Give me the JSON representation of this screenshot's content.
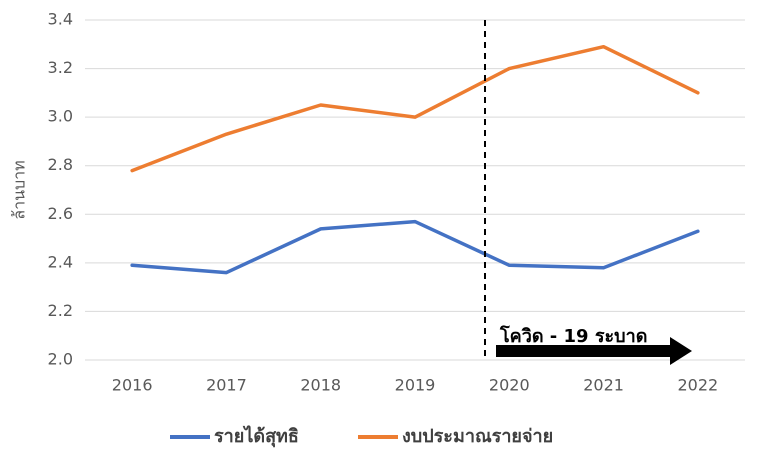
{
  "chart_data": {
    "type": "line",
    "y_label": "ล้านบาท",
    "annotation": "โควิด - 19 ระบาด",
    "categories": [
      "2016",
      "2017",
      "2018",
      "2019",
      "2020",
      "2021",
      "2022"
    ],
    "series": [
      {
        "name": "รายได้สุทธิ",
        "color": "#4472c4",
        "values": [
          2.39,
          2.36,
          2.54,
          2.57,
          2.39,
          2.38,
          2.53
        ]
      },
      {
        "name": "งบประมาณรายจ่าย",
        "color": "#ed7d31",
        "values": [
          2.78,
          2.93,
          3.05,
          3.0,
          3.2,
          3.29,
          3.1
        ]
      }
    ],
    "ylim": [
      2.0,
      3.4
    ],
    "yticks": [
      {
        "value": 2.0,
        "label": "2.0"
      },
      2.2,
      2.4,
      2.6,
      2.8,
      {
        "value": 3.0,
        "label": "3.0"
      },
      3.2,
      3.4
    ],
    "grid": true
  }
}
